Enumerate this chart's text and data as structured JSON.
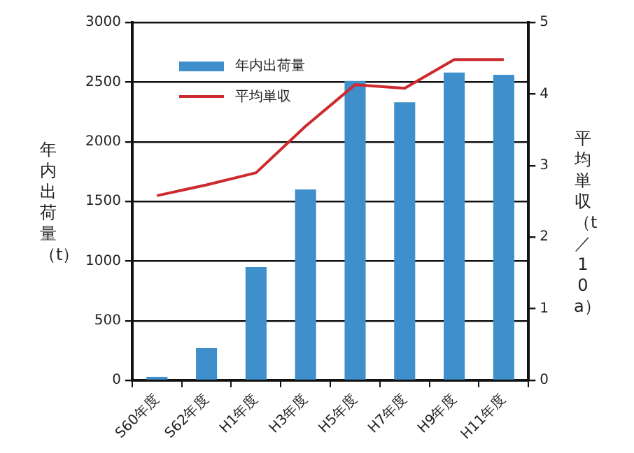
{
  "chart_data": {
    "type": "bar",
    "categories": [
      "S60年度",
      "S62年度",
      "H1年度",
      "H3年度",
      "H5年度",
      "H7年度",
      "H9年度",
      "H11年度"
    ],
    "series": [
      {
        "name": "年内出荷量",
        "color": "#3f8fcc",
        "values": [
          30,
          270,
          950,
          1600,
          2510,
          2330,
          2580,
          2560
        ]
      },
      {
        "name": "平均単収",
        "type": "line",
        "axis": "y2",
        "color": "#cc2a2e",
        "values": [
          2.58,
          2.73,
          2.9,
          3.55,
          4.13,
          4.08,
          4.48,
          4.48
        ]
      }
    ],
    "ylabel": "年内出荷量（t）",
    "y2label": "平均単収（t／10a）",
    "ylim": [
      0,
      3000
    ],
    "yticks": [
      0,
      500,
      1000,
      1500,
      2000,
      2500,
      3000
    ],
    "y2lim": [
      0,
      5
    ],
    "y2ticks": [
      0,
      1,
      2,
      3,
      4,
      5
    ],
    "grid": "y",
    "legend": "top left",
    "marker": "none"
  }
}
